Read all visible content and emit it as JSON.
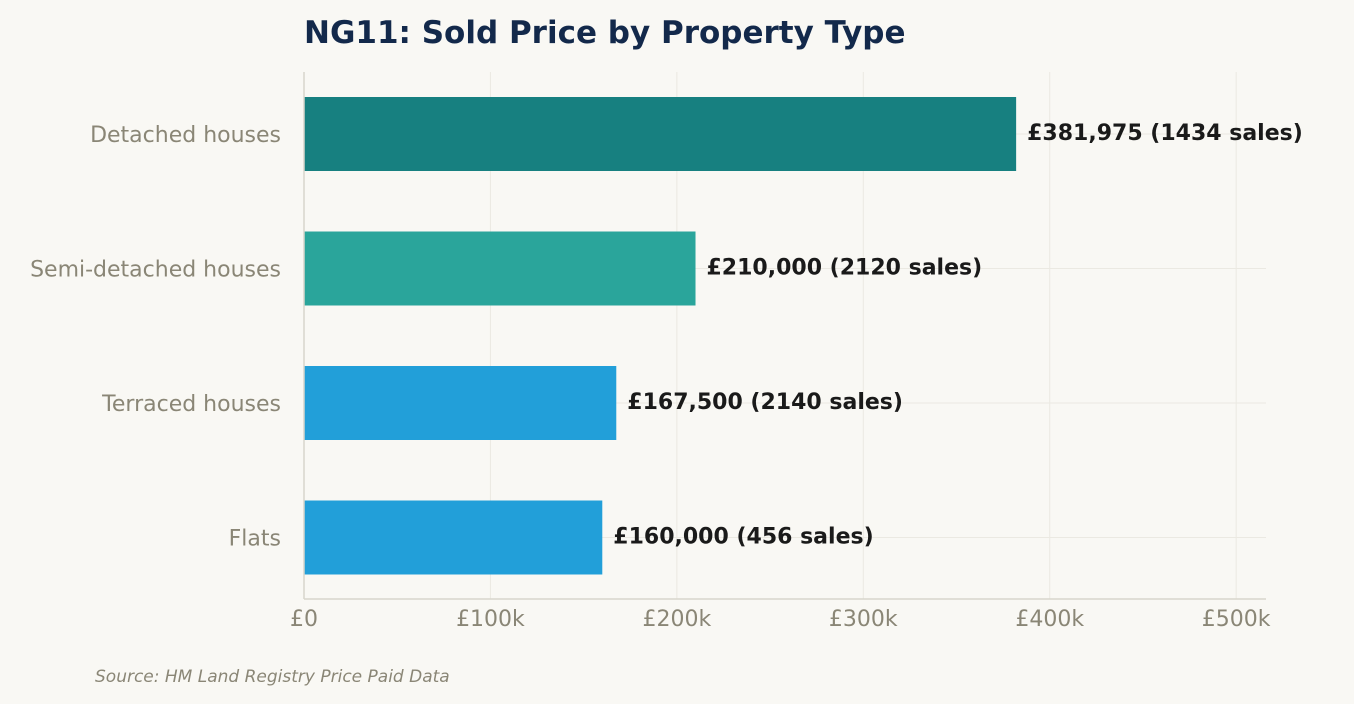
{
  "chart_data": {
    "type": "bar",
    "orientation": "horizontal",
    "title": "NG11: Sold Price by Property Type",
    "categories": [
      "Detached houses",
      "Semi-detached houses",
      "Terraced houses",
      "Flats"
    ],
    "values": [
      381975,
      210000,
      167500,
      160000
    ],
    "sales": [
      1434,
      2120,
      2140,
      456
    ],
    "data_labels": [
      "£381,975  (1434 sales)",
      "£210,000  (2120 sales)",
      "£167,500  (2140 sales)",
      "£160,000  (456 sales)"
    ],
    "bar_colors": [
      "#178080",
      "#2aa59b",
      "#229fd9",
      "#229fd9"
    ],
    "xlim": [
      0,
      516000
    ],
    "xticks": [
      0,
      100000,
      200000,
      300000,
      400000,
      500000
    ],
    "xtick_labels": [
      "£0",
      "£100k",
      "£200k",
      "£300k",
      "£400k",
      "£500k"
    ],
    "xlabel": "",
    "ylabel": "",
    "grid": true,
    "legend": false
  },
  "source": "Source: HM Land Registry Price Paid Data",
  "colors": {
    "background": "#f9f8f4",
    "title": "#13294b",
    "axis_text": "#8a8676",
    "data_label": "#1a1a1a",
    "grid": "#ebe9e2",
    "axis_line": "#d8d6cc"
  }
}
